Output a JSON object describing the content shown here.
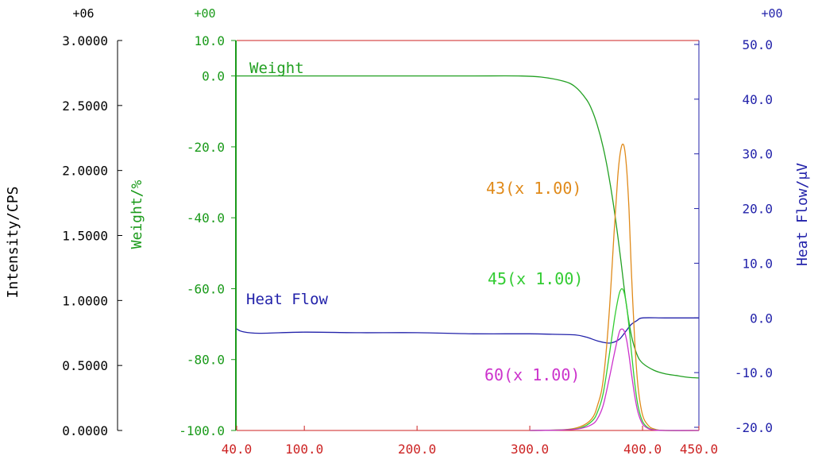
{
  "chart_data": {
    "type": "line",
    "axes": {
      "intensity": {
        "label": "Intensity/CPS",
        "exponent": "+06",
        "min": 0,
        "max": 3.0,
        "ticks": [
          "0.0000",
          "0.5000",
          "1.0000",
          "1.5000",
          "2.0000",
          "2.5000",
          "3.0000"
        ],
        "color": "#000000"
      },
      "weight": {
        "label": "Weight/%",
        "exponent": "+00",
        "min": -100,
        "max": 10,
        "ticks": [
          "-100.0",
          "-80.0",
          "-60.0",
          "-40.0",
          "-20.0",
          "0.0",
          "10.0"
        ],
        "color": "#1a9a1a"
      },
      "heatflow": {
        "label": "Heat Flow/μV",
        "exponent": "+00",
        "min": -20,
        "max": 50,
        "ticks": [
          "-20.0",
          "-10.0",
          "0.0",
          "10.0",
          "20.0",
          "30.0",
          "40.0",
          "50.0"
        ],
        "color": "#2222aa"
      },
      "x": {
        "min": 40,
        "max": 450,
        "ticks": [
          "40.0",
          "100.0",
          "200.0",
          "300.0",
          "400.0",
          "450.0"
        ],
        "color": "#cc2222"
      }
    },
    "series": [
      {
        "name": "Weight",
        "axis": "weight",
        "color": "#22a022",
        "x": [
          40,
          100,
          200,
          250,
          290,
          310,
          330,
          340,
          350,
          355,
          360,
          365,
          370,
          375,
          380,
          385,
          390,
          395,
          400,
          410,
          420,
          430,
          440,
          450
        ],
        "y": [
          0,
          0,
          0,
          0,
          0,
          -0.3,
          -1.5,
          -3,
          -6.5,
          -9.5,
          -14,
          -20,
          -28,
          -38,
          -50,
          -63,
          -73,
          -78.5,
          -81,
          -83,
          -84,
          -84.5,
          -85,
          -85.2
        ]
      },
      {
        "name": "Heat Flow",
        "axis": "heatflow",
        "color": "#2222aa",
        "x": [
          40,
          45,
          60,
          100,
          150,
          200,
          250,
          300,
          320,
          340,
          350,
          360,
          370,
          375,
          380,
          385,
          390,
          395,
          400,
          420,
          450
        ],
        "y": [
          -2.0,
          -2.5,
          -2.8,
          -2.6,
          -2.7,
          -2.7,
          -2.9,
          -2.9,
          -3.0,
          -3.1,
          -3.5,
          -4.2,
          -4.6,
          -4.4,
          -3.8,
          -2.5,
          -1.2,
          -0.5,
          0,
          0,
          0
        ]
      },
      {
        "name": "43(x 1.00)",
        "axis": "intensity",
        "color": "#e08a1a",
        "x": [
          300,
          330,
          345,
          355,
          360,
          365,
          370,
          375,
          378,
          380,
          382,
          384,
          386,
          388,
          390,
          393,
          396,
          400,
          405,
          410,
          420,
          450
        ],
        "y": [
          0,
          0.006,
          0.03,
          0.09,
          0.19,
          0.38,
          0.85,
          1.55,
          1.95,
          2.12,
          2.2,
          2.17,
          2.0,
          1.7,
          1.25,
          0.7,
          0.34,
          0.12,
          0.04,
          0.012,
          0,
          0
        ]
      },
      {
        "name": "45(x 1.00)",
        "axis": "intensity",
        "color": "#33cc33",
        "x": [
          300,
          330,
          345,
          355,
          360,
          365,
          370,
          375,
          378,
          380,
          382,
          384,
          386,
          388,
          390,
          393,
          396,
          400,
          405,
          410,
          420,
          450
        ],
        "y": [
          0,
          0.005,
          0.02,
          0.07,
          0.14,
          0.28,
          0.55,
          0.85,
          1.0,
          1.07,
          1.09,
          1.05,
          0.95,
          0.8,
          0.62,
          0.37,
          0.19,
          0.07,
          0.02,
          0.006,
          0,
          0
        ]
      },
      {
        "name": "60(x 1.00)",
        "axis": "intensity",
        "color": "#cc33cc",
        "x": [
          300,
          330,
          345,
          355,
          360,
          365,
          370,
          375,
          378,
          380,
          382,
          384,
          386,
          388,
          390,
          393,
          396,
          400,
          405,
          410,
          420,
          450
        ],
        "y": [
          0,
          0.004,
          0.015,
          0.045,
          0.09,
          0.19,
          0.38,
          0.59,
          0.71,
          0.77,
          0.78,
          0.76,
          0.69,
          0.58,
          0.45,
          0.27,
          0.14,
          0.05,
          0.015,
          0.004,
          0,
          0
        ]
      }
    ],
    "series_labels": [
      {
        "text": "Weight",
        "series": "Weight"
      },
      {
        "text": "Heat Flow",
        "series": "Heat Flow"
      },
      {
        "text": "43(x 1.00)",
        "series": "43(x 1.00)"
      },
      {
        "text": "45(x 1.00)",
        "series": "45(x 1.00)"
      },
      {
        "text": "60(x 1.00)",
        "series": "60(x 1.00)"
      }
    ],
    "frame_color": "#cc2222",
    "grid": false
  }
}
